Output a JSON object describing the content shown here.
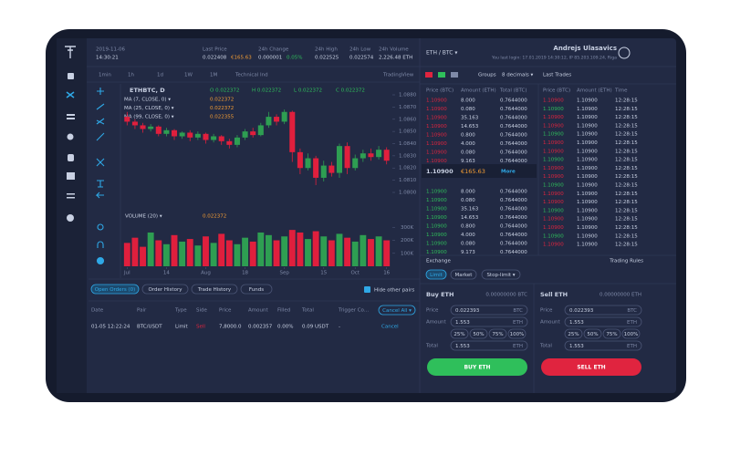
{
  "header": {
    "date": "2019-11-06",
    "time": "14:30:21",
    "stats": [
      {
        "label": "Last Price",
        "value": "0.022408",
        "extra": "€165.63"
      },
      {
        "label": "24h Change",
        "value": "0.000001",
        "extra": "0.05%"
      },
      {
        "label": "24h High",
        "value": "0.022525"
      },
      {
        "label": "24h Low",
        "value": "0.022574"
      },
      {
        "label": "24h Volume",
        "value": "2,226.48 ETH"
      }
    ],
    "pair": "ETH / BTC ▾",
    "user": "Andrejs Ulasavics",
    "last_login": "You last login: 17.01.2019 14:30:12, IP 85.203.109.24, Riga"
  },
  "toolbar": [
    "1min",
    "1h",
    "1d",
    "1W",
    "1M",
    "Technical Ind",
    "TradingView"
  ],
  "chart_data": {
    "type": "candlestick",
    "title": "ETHBTC, D",
    "ohlc": [
      "O 0.022372",
      "H 0.022372",
      "L 0.022372",
      "C 0.022372"
    ],
    "indicators": [
      "MA (7, CLOSE, 0) ▾",
      "MA (25, CLOSE, 0) ▾",
      "MA (99, CLOSE, 0) ▾"
    ],
    "indicator_values": [
      "0.022372",
      "0.022372",
      "0.022355"
    ],
    "volume_label": "VOLUME (20) ▾",
    "volume_value": "0.022372",
    "up_color": "#2e9e52",
    "down_color": "#e01f3d",
    "open": [
      1.0862,
      1.0858,
      1.0855,
      1.0852,
      1.0854,
      1.0848,
      1.0851,
      1.0846,
      1.0849,
      1.0845,
      1.0848,
      1.0843,
      1.0846,
      1.0842,
      1.0839,
      1.0845,
      1.085,
      1.0847,
      1.0855,
      1.0862,
      1.0858,
      1.0866,
      1.0833,
      1.082,
      1.0828,
      1.0812,
      1.0822,
      1.0816,
      1.0838,
      1.082,
      1.0828,
      1.0832,
      1.0829,
      1.0835
    ],
    "high": [
      1.0866,
      1.086,
      1.0857,
      1.0856,
      1.0855,
      1.0853,
      1.0852,
      1.085,
      1.0851,
      1.085,
      1.0849,
      1.0848,
      1.0847,
      1.0844,
      1.0847,
      1.0852,
      1.0853,
      1.0857,
      1.0866,
      1.0864,
      1.0868,
      1.0867,
      1.0836,
      1.0832,
      1.083,
      1.0826,
      1.0825,
      1.084,
      1.0841,
      1.0831,
      1.0835,
      1.0836,
      1.0838,
      1.0837
    ],
    "low": [
      1.0855,
      1.0852,
      1.0849,
      1.085,
      1.0846,
      1.0846,
      1.0843,
      1.0844,
      1.0842,
      1.0843,
      1.084,
      1.0841,
      1.0839,
      1.0836,
      1.0837,
      1.0843,
      1.0845,
      1.0846,
      1.0853,
      1.0855,
      1.0856,
      1.0825,
      1.0815,
      1.0818,
      1.0806,
      1.0809,
      1.0813,
      1.0812,
      1.0815,
      1.0818,
      1.0825,
      1.0826,
      1.0827,
      1.0823
    ],
    "close": [
      1.0858,
      1.0855,
      1.0852,
      1.0854,
      1.0848,
      1.0851,
      1.0846,
      1.0849,
      1.0845,
      1.0848,
      1.0843,
      1.0846,
      1.0842,
      1.0839,
      1.0845,
      1.085,
      1.0847,
      1.0855,
      1.0862,
      1.0858,
      1.0866,
      1.0833,
      1.082,
      1.0828,
      1.0812,
      1.0822,
      1.0816,
      1.0838,
      1.082,
      1.0828,
      1.0832,
      1.0829,
      1.0835,
      1.0826
    ],
    "volume": [
      180,
      220,
      150,
      260,
      200,
      170,
      240,
      190,
      210,
      160,
      230,
      180,
      250,
      200,
      170,
      220,
      190,
      260,
      240,
      200,
      230,
      280,
      260,
      210,
      270,
      230,
      200,
      250,
      220,
      190,
      240,
      210,
      230,
      200
    ],
    "xlim": [
      -0.5,
      33.5
    ],
    "xticks": [
      {
        "value": 0,
        "label": "Jul"
      },
      {
        "value": 5,
        "label": "14"
      },
      {
        "value": 10,
        "label": "Aug"
      },
      {
        "value": 15,
        "label": "18"
      },
      {
        "value": 20,
        "label": "Sep"
      },
      {
        "value": 25,
        "label": "15"
      },
      {
        "value": 29,
        "label": "Oct"
      },
      {
        "value": 33,
        "label": "16"
      }
    ],
    "ylim": [
      1.0797,
      1.0883
    ],
    "yticks": [
      {
        "value": 1.088,
        "label": "1.0880"
      },
      {
        "value": 1.087,
        "label": "1.0870"
      },
      {
        "value": 1.086,
        "label": "1.0860"
      },
      {
        "value": 1.085,
        "label": "1.0850"
      },
      {
        "value": 1.084,
        "label": "1.0840"
      },
      {
        "value": 1.083,
        "label": "1.0830"
      },
      {
        "value": 1.082,
        "label": "1.0820"
      },
      {
        "value": 1.081,
        "label": "1.0810"
      },
      {
        "value": 1.08,
        "label": "1.0800"
      }
    ],
    "volume_ylim": [
      0,
      330
    ],
    "volume_yticks": [
      {
        "value": 300,
        "label": "300K"
      },
      {
        "value": 200,
        "label": "200K"
      },
      {
        "value": 100,
        "label": "100K"
      }
    ]
  },
  "order_book": {
    "tools": [
      "Groups",
      "8 decimals ▾"
    ],
    "columns": [
      "Price (BTC)",
      "Amount (ETH)",
      "Total (BTC)"
    ],
    "asks": [
      [
        "1.10900",
        "8.000",
        "0.7644000"
      ],
      [
        "1.10900",
        "0.080",
        "0.7644000"
      ],
      [
        "1.10900",
        "35.163",
        "0.7644000"
      ],
      [
        "1.10900",
        "14.653",
        "0.7644000"
      ],
      [
        "1.10900",
        "0.800",
        "0.7644000"
      ],
      [
        "1.10900",
        "4.000",
        "0.7644000"
      ],
      [
        "1.10900",
        "0.080",
        "0.7644000"
      ],
      [
        "1.10900",
        "9.163",
        "0.7644000"
      ]
    ],
    "last_price": "1.10900",
    "last_fiat": "€165.63",
    "more": "More",
    "bids": [
      [
        "1.10900",
        "8.000",
        "0.7644000"
      ],
      [
        "1.10900",
        "0.080",
        "0.7644000"
      ],
      [
        "1.10900",
        "35.163",
        "0.7644000"
      ],
      [
        "1.10900",
        "14.653",
        "0.7644000"
      ],
      [
        "1.10900",
        "0.800",
        "0.7644000"
      ],
      [
        "1.10900",
        "4.000",
        "0.7644000"
      ],
      [
        "1.10900",
        "0.080",
        "0.7644000"
      ],
      [
        "1.10900",
        "9.173",
        "0.7644000"
      ]
    ]
  },
  "trades": {
    "title": "Last Trades",
    "columns": [
      "Price (BTC)",
      "Amount (ETH)",
      "Time"
    ],
    "rows": [
      [
        "1.10900",
        "1.10900",
        "12:28:15"
      ],
      [
        "1.10900",
        "1.10900",
        "12:28:15"
      ],
      [
        "1.10900",
        "1.10900",
        "12:28:15"
      ],
      [
        "1.10900",
        "1.10900",
        "12:28:15"
      ],
      [
        "1.10900",
        "1.10900",
        "12:28:15"
      ],
      [
        "1.10900",
        "1.10900",
        "12:28:15"
      ],
      [
        "1.10900",
        "1.10900",
        "12:28:15"
      ],
      [
        "1.10900",
        "1.10900",
        "12:28:15"
      ],
      [
        "1.10900",
        "1.10900",
        "12:28:15"
      ],
      [
        "1.10900",
        "1.10900",
        "12:28:15"
      ],
      [
        "1.10900",
        "1.10900",
        "12:28:15"
      ],
      [
        "1.10900",
        "1.10900",
        "12:28:15"
      ],
      [
        "1.10900",
        "1.10900",
        "12:28:15"
      ],
      [
        "1.10900",
        "1.10900",
        "12:28:15"
      ],
      [
        "1.10900",
        "1.10900",
        "12:28:15"
      ],
      [
        "1.10900",
        "1.10900",
        "12:28:15"
      ],
      [
        "1.10900",
        "1.10900",
        "12:28:15"
      ],
      [
        "1.10900",
        "1.10900",
        "12:28:15"
      ]
    ]
  },
  "orders": {
    "tabs": [
      "Open Orders (0)",
      "Order History",
      "Trade History",
      "Funds"
    ],
    "hide_label": "Hide other pairs",
    "columns": [
      "Date",
      "Pair",
      "Type",
      "Side",
      "Price",
      "Amount",
      "Filled",
      "Total",
      "Trigger Co..."
    ],
    "cancel_all": "Cancel All ▾",
    "rows": [
      [
        "01-05 12:22:24",
        "BTC/USDT",
        "Limit",
        "Sell",
        "7,8000.0",
        "0.002357",
        "0.00%",
        "0.09 USDT",
        "-",
        "Cancel"
      ]
    ]
  },
  "exchange": {
    "title": "Exchange",
    "rules": "Trading Rules",
    "tabs": [
      "Limit",
      "Market",
      "Stop-limit ▾"
    ],
    "percents": [
      "25%",
      "50%",
      "75%",
      "100%"
    ],
    "buy": {
      "title": "Buy ETH",
      "balance": "0.00000000 BTC",
      "fields": [
        {
          "label": "Price",
          "value": "0.022393",
          "unit": "BTC"
        },
        {
          "label": "Amount",
          "value": "1.553",
          "unit": "ETH"
        },
        {
          "label": "Total",
          "value": "1.553",
          "unit": "ETH"
        }
      ],
      "button": "BUY ETH"
    },
    "sell": {
      "title": "Sell ETH",
      "balance": "0.00000000 ETH",
      "fields": [
        {
          "label": "Price",
          "value": "0.022393",
          "unit": "BTC"
        },
        {
          "label": "Amount",
          "value": "1.553",
          "unit": "ETH"
        },
        {
          "label": "Total",
          "value": "1.553",
          "unit": "ETH"
        }
      ],
      "button": "SELL ETH"
    }
  }
}
